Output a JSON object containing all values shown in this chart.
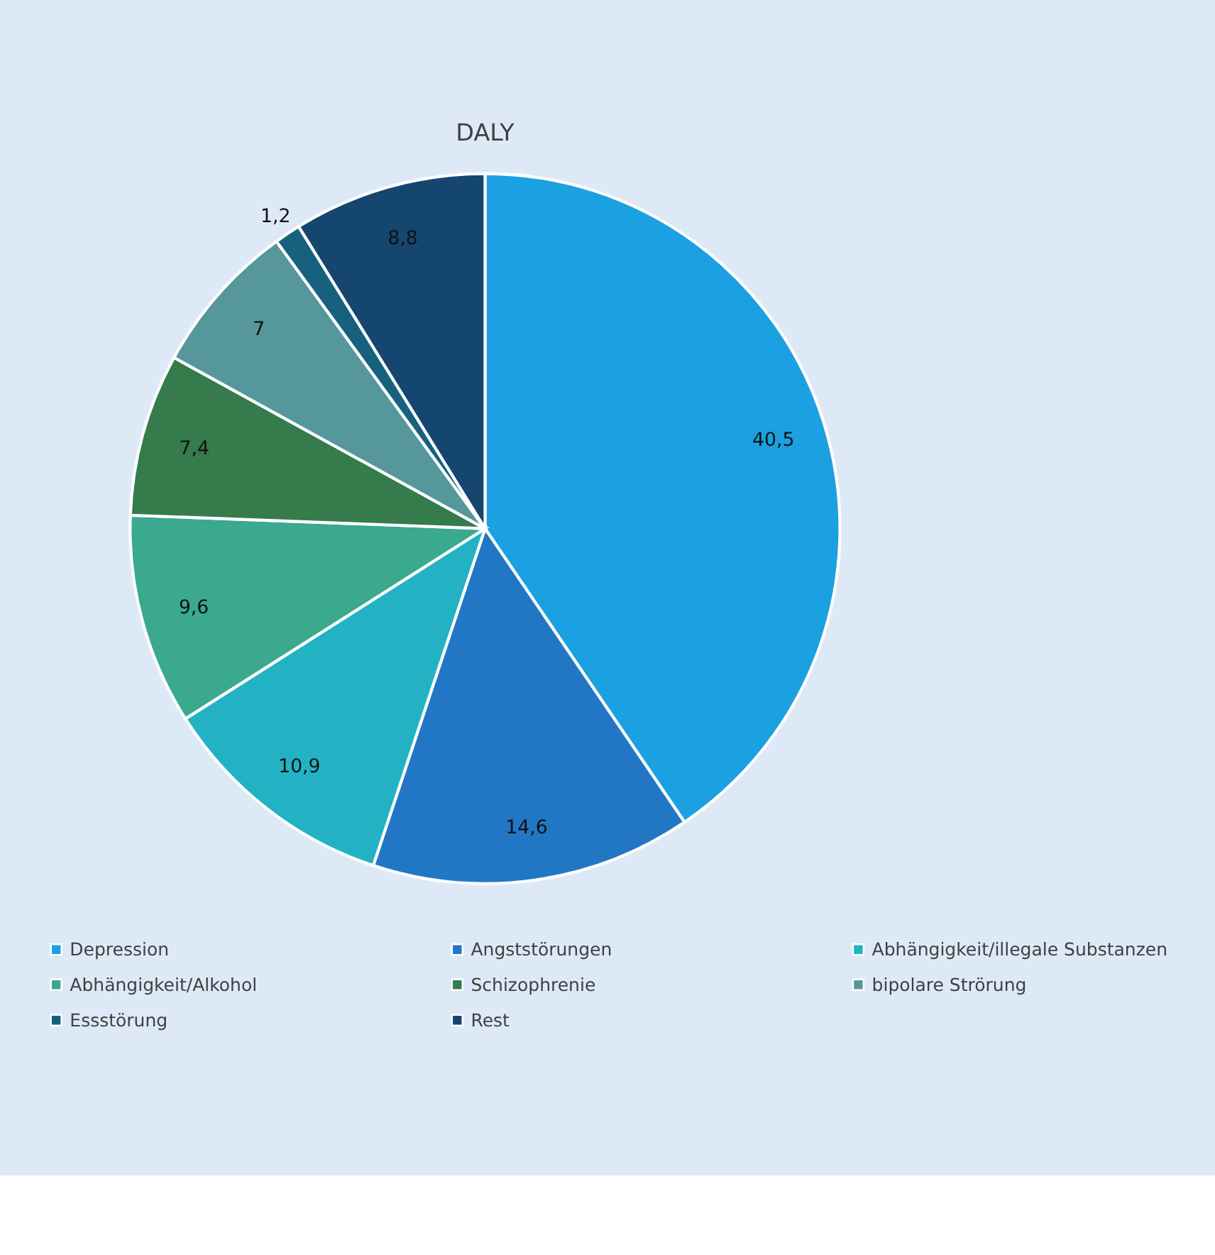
{
  "chart_data": {
    "type": "pie",
    "title": "DALY",
    "categories": [
      "Depression",
      "Angststörungen",
      "Abhängigkeit/illegale Substanzen",
      "Abhängigkeit/Alkohol",
      "Schizophrenie",
      "bipolare Strörung",
      "Essstörung",
      "Rest"
    ],
    "values": [
      40.5,
      14.6,
      10.9,
      9.6,
      7.4,
      7,
      1.2,
      8.8
    ],
    "value_labels": [
      "40,5",
      "14,6",
      "10,9",
      "9,6",
      "7,4",
      "7",
      "1,2",
      "8,8"
    ],
    "colors": [
      "#1ba1e2",
      "#2277c4",
      "#22b2c4",
      "#3aa98e",
      "#357b4c",
      "#55979b",
      "#17617f",
      "#15466f"
    ],
    "legend": "bottom"
  }
}
